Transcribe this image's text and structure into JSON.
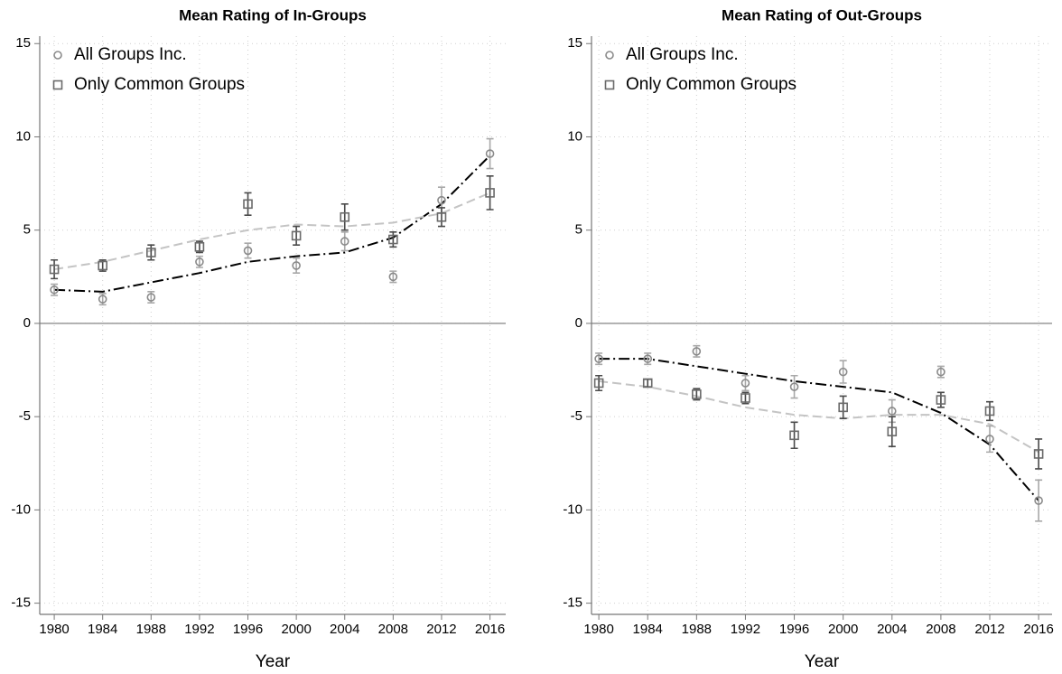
{
  "chart_data": [
    {
      "type": "line",
      "title": "Mean Rating of In-Groups",
      "xlabel": "Year",
      "x": [
        1980,
        1984,
        1988,
        1992,
        1996,
        2000,
        2004,
        2008,
        2012,
        2016
      ],
      "xlim": [
        1978.8,
        2017.3
      ],
      "xticks": [
        1980,
        1984,
        1988,
        1992,
        1996,
        2000,
        2004,
        2008,
        2012,
        2016
      ],
      "ylim": [
        -15.6,
        15.4
      ],
      "yticks": [
        -15,
        -10,
        -5,
        0,
        5,
        10,
        15
      ],
      "grid": true,
      "zero_line": true,
      "legend": "upper left",
      "series": [
        {
          "name": "All Groups Inc.",
          "marker": "circle",
          "color": "#8a8a8a",
          "error_color": "#a8a8a8",
          "values": [
            1.8,
            1.3,
            1.4,
            3.3,
            3.9,
            3.1,
            4.4,
            2.5,
            6.6,
            9.1
          ],
          "errors": [
            0.3,
            0.3,
            0.3,
            0.3,
            0.4,
            0.4,
            0.5,
            0.3,
            0.7,
            0.8
          ],
          "fit": [
            1.8,
            1.7,
            2.2,
            2.7,
            3.3,
            3.6,
            3.8,
            4.6,
            6.4,
            9.0
          ],
          "fit_color": "#000000",
          "fit_dash": "12 4 2 4"
        },
        {
          "name": "Only Common Groups",
          "marker": "square",
          "color": "#6a6a6a",
          "error_color": "#4a4a4a",
          "values": [
            2.9,
            3.1,
            3.8,
            4.1,
            6.4,
            4.7,
            5.7,
            4.5,
            5.7,
            7.0
          ],
          "errors": [
            0.5,
            0.3,
            0.4,
            0.3,
            0.6,
            0.5,
            0.7,
            0.4,
            0.5,
            0.9
          ],
          "fit": [
            2.9,
            3.3,
            3.9,
            4.5,
            5.0,
            5.3,
            5.2,
            5.4,
            5.9,
            7.0
          ],
          "fit_color": "#c4c4c4",
          "fit_dash": "10 5"
        }
      ]
    },
    {
      "type": "line",
      "title": "Mean Rating of Out-Groups",
      "xlabel": "Year",
      "x": [
        1980,
        1984,
        1988,
        1992,
        1996,
        2000,
        2004,
        2008,
        2012,
        2016
      ],
      "xlim": [
        1979.4,
        2017.1
      ],
      "xticks": [
        1980,
        1984,
        1988,
        1992,
        1996,
        2000,
        2004,
        2008,
        2012,
        2016
      ],
      "ylim": [
        -15.6,
        15.4
      ],
      "yticks": [
        -15,
        -10,
        -5,
        0,
        5,
        10,
        15
      ],
      "grid": true,
      "zero_line": true,
      "legend": "upper left",
      "series": [
        {
          "name": "All Groups Inc.",
          "marker": "circle",
          "color": "#8a8a8a",
          "error_color": "#a8a8a8",
          "values": [
            -1.9,
            -1.9,
            -1.5,
            -3.2,
            -3.4,
            -2.6,
            -4.7,
            -2.6,
            -6.2,
            -9.5
          ],
          "errors": [
            0.3,
            0.3,
            0.3,
            0.4,
            0.6,
            0.6,
            0.6,
            0.3,
            0.7,
            1.1
          ],
          "fit": [
            -1.9,
            -1.9,
            -2.3,
            -2.7,
            -3.1,
            -3.4,
            -3.7,
            -4.8,
            -6.5,
            -9.5
          ],
          "fit_color": "#000000",
          "fit_dash": "12 4 2 4"
        },
        {
          "name": "Only Common Groups",
          "marker": "square",
          "color": "#6a6a6a",
          "error_color": "#4a4a4a",
          "values": [
            -3.2,
            -3.2,
            -3.8,
            -4.0,
            -6.0,
            -4.5,
            -5.8,
            -4.1,
            -4.7,
            -7.0
          ],
          "errors": [
            0.4,
            0.2,
            0.3,
            0.3,
            0.7,
            0.6,
            0.8,
            0.4,
            0.5,
            0.8
          ],
          "fit": [
            -3.1,
            -3.4,
            -3.9,
            -4.5,
            -4.9,
            -5.1,
            -4.9,
            -4.9,
            -5.4,
            -6.9
          ],
          "fit_color": "#c4c4c4",
          "fit_dash": "10 5"
        }
      ]
    }
  ]
}
